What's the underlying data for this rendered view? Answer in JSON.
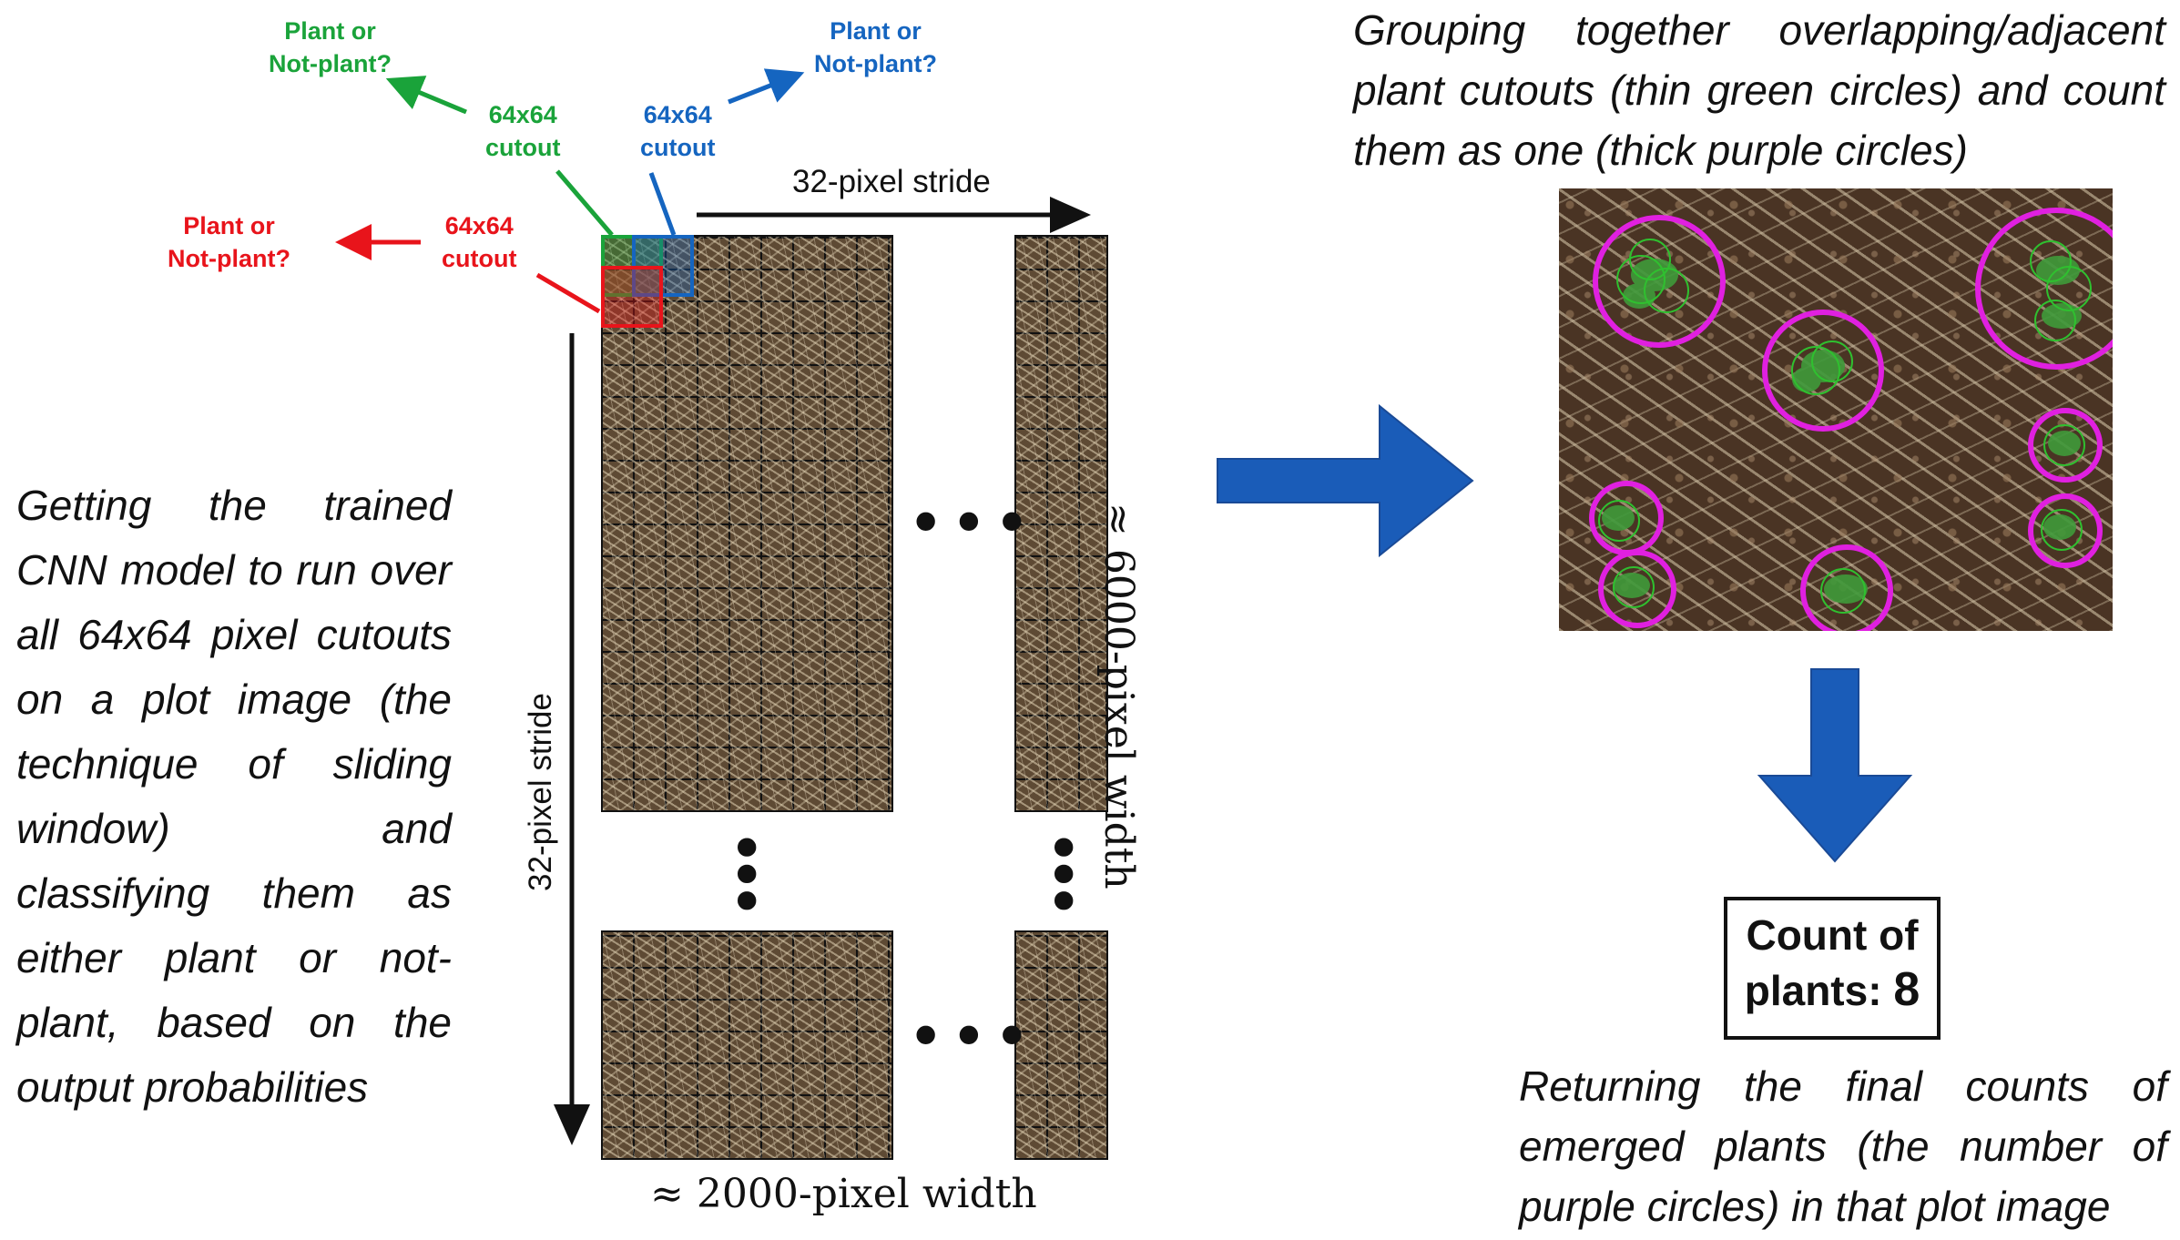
{
  "labels": {
    "green_question": "Plant or\nNot-plant?",
    "green_cutout": "64x64\ncutout",
    "blue_question": "Plant or\nNot-plant?",
    "blue_cutout": "64x64\ncutout",
    "red_question": "Plant or\nNot-plant?",
    "red_cutout": "64x64\ncutout",
    "stride_horizontal": "32-pixel stride",
    "stride_vertical": "32-pixel stride",
    "width_label": "≈ 2000-pixel width",
    "height_label": "≈ 6000-pixel width",
    "ellipsis": "•••"
  },
  "left_text": "Getting the trained CNN model to run over all 64x64 pixel cutouts on a plot image (the technique of sliding window) and classifying them as either plant or not-plant, based on the output probabilities",
  "top_right_text": "Grouping together overlapping/adjacent plant cutouts (thin green circles) and count them as one (thick purple circles)",
  "count_box": {
    "line1": "Count of",
    "line2_label": "plants:",
    "value": "8"
  },
  "bottom_right_text": "Returning the final counts of emerged plants (the number of purple circles) in that plot image",
  "colors": {
    "green": "#1aa33a",
    "blue": "#1565c0",
    "red": "#e8141b",
    "purple": "#e020e0",
    "big_arrow": "#1a5cb8"
  }
}
